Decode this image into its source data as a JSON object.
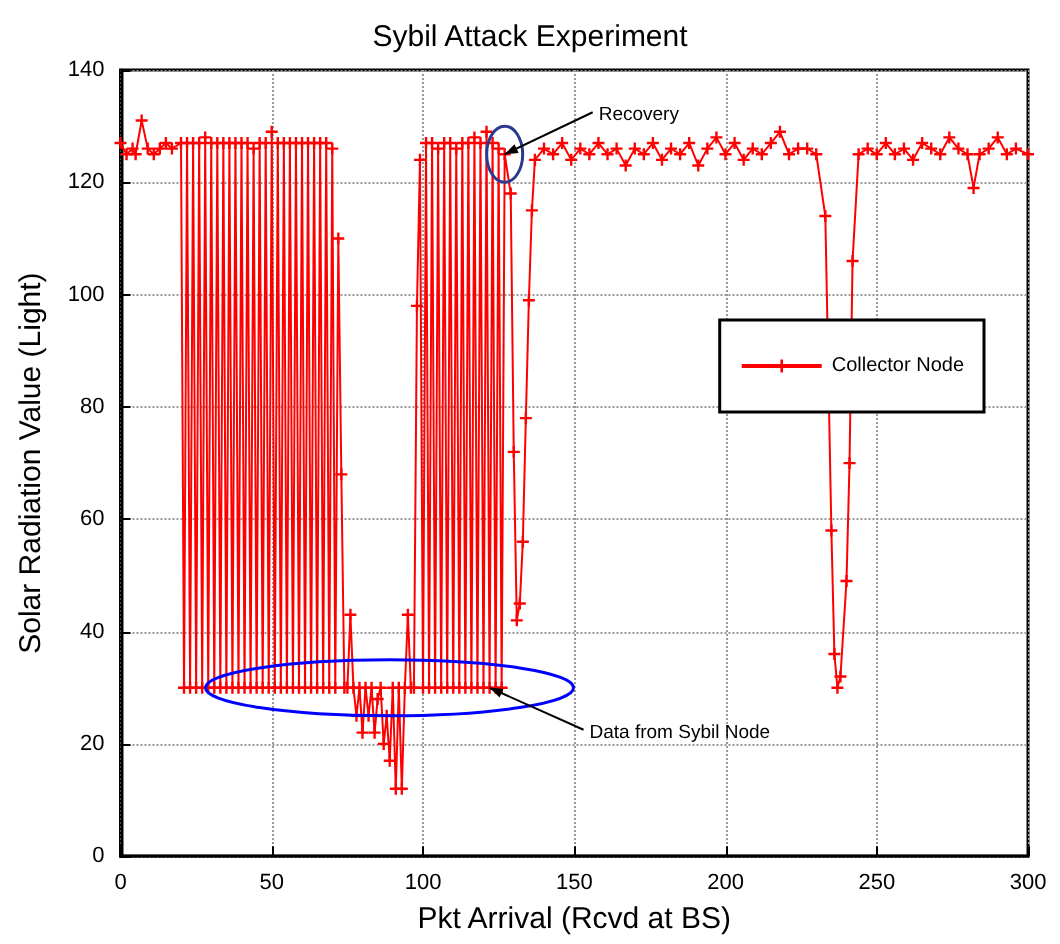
{
  "chart_data": {
    "type": "line",
    "title": "Sybil Attack Experiment",
    "xlabel": "Pkt Arrival (Rcvd at BS)",
    "ylabel": "Solar Radiation Value (Light)",
    "xlim": [
      0,
      300
    ],
    "xticks": [
      0,
      50,
      100,
      150,
      200,
      250,
      300
    ],
    "ylim": [
      0,
      140
    ],
    "yticks": [
      0,
      20,
      40,
      60,
      80,
      100,
      120,
      140
    ],
    "grid": true,
    "legend": "right",
    "marker": "cross",
    "line_style": "solid",
    "annotations": [
      {
        "text": "Recovery",
        "x": 127,
        "y": 125
      },
      {
        "text": "Data from Sybil Node",
        "x": 122,
        "y": 30
      }
    ],
    "series": [
      {
        "name": "Collector Node",
        "color": "#ff0000",
        "x": [
          0,
          2,
          4,
          5,
          7,
          9,
          11,
          13,
          15,
          17,
          20,
          21,
          22,
          23,
          24,
          25,
          26,
          27,
          28,
          29,
          30,
          31,
          32,
          33,
          34,
          35,
          36,
          37,
          38,
          39,
          40,
          41,
          42,
          43,
          44,
          45,
          46,
          47,
          48,
          49,
          50,
          51,
          52,
          53,
          54,
          55,
          56,
          57,
          58,
          59,
          60,
          61,
          62,
          63,
          64,
          65,
          66,
          67,
          68,
          69,
          70,
          71,
          72,
          73,
          74,
          75,
          76,
          77,
          78,
          79,
          80,
          81,
          82,
          83,
          84,
          85,
          86,
          87,
          88,
          89,
          90,
          91,
          92,
          93,
          94,
          95,
          96,
          97,
          98,
          99,
          100,
          101,
          102,
          103,
          104,
          105,
          106,
          107,
          108,
          109,
          110,
          111,
          112,
          113,
          114,
          115,
          116,
          117,
          118,
          119,
          120,
          121,
          122,
          123,
          124,
          125,
          126,
          127,
          129,
          130,
          131,
          132,
          133,
          134,
          135,
          136,
          137,
          140,
          143,
          146,
          149,
          152,
          155,
          158,
          161,
          164,
          167,
          170,
          173,
          176,
          179,
          182,
          185,
          188,
          191,
          194,
          197,
          200,
          203,
          206,
          209,
          212,
          215,
          218,
          221,
          224,
          227,
          230,
          233,
          235,
          236,
          237,
          238,
          240,
          241,
          242,
          244,
          247,
          250,
          253,
          256,
          259,
          262,
          265,
          268,
          271,
          274,
          277,
          280,
          282,
          284,
          287,
          290,
          293,
          296,
          300
        ],
        "values": [
          127,
          125,
          126,
          125,
          131,
          126,
          125,
          126,
          127,
          126,
          127,
          30,
          127,
          30,
          127,
          30,
          127,
          30,
          128,
          30,
          127,
          30,
          127,
          30,
          127,
          30,
          127,
          30,
          127,
          30,
          127,
          30,
          127,
          30,
          126,
          30,
          127,
          30,
          127,
          30,
          129,
          30,
          127,
          30,
          127,
          30,
          127,
          30,
          127,
          30,
          127,
          30,
          127,
          30,
          127,
          30,
          127,
          30,
          127,
          30,
          126,
          30,
          110,
          68,
          30,
          30,
          43,
          30,
          25,
          30,
          22,
          30,
          25,
          30,
          22,
          28,
          30,
          20,
          25,
          17,
          30,
          12,
          30,
          12,
          30,
          43,
          30,
          30,
          98,
          124,
          30,
          127,
          30,
          127,
          30,
          126,
          30,
          127,
          30,
          127,
          30,
          126,
          30,
          127,
          30,
          127,
          30,
          128,
          30,
          127,
          30,
          129,
          30,
          127,
          30,
          126,
          30,
          125,
          118,
          72,
          42,
          45,
          56,
          78,
          99,
          115,
          124,
          126,
          125,
          127,
          124,
          126,
          125,
          127,
          125,
          126,
          123,
          126,
          125,
          127,
          124,
          126,
          125,
          127,
          123,
          126,
          128,
          125,
          127,
          124,
          126,
          125,
          127,
          129,
          125,
          126,
          126,
          125,
          114,
          58,
          36,
          30,
          32,
          49,
          70,
          106,
          125,
          126,
          125,
          127,
          125,
          126,
          124,
          127,
          126,
          125,
          128,
          126,
          125,
          119,
          125,
          126,
          128,
          125,
          126,
          125
        ]
      }
    ]
  }
}
